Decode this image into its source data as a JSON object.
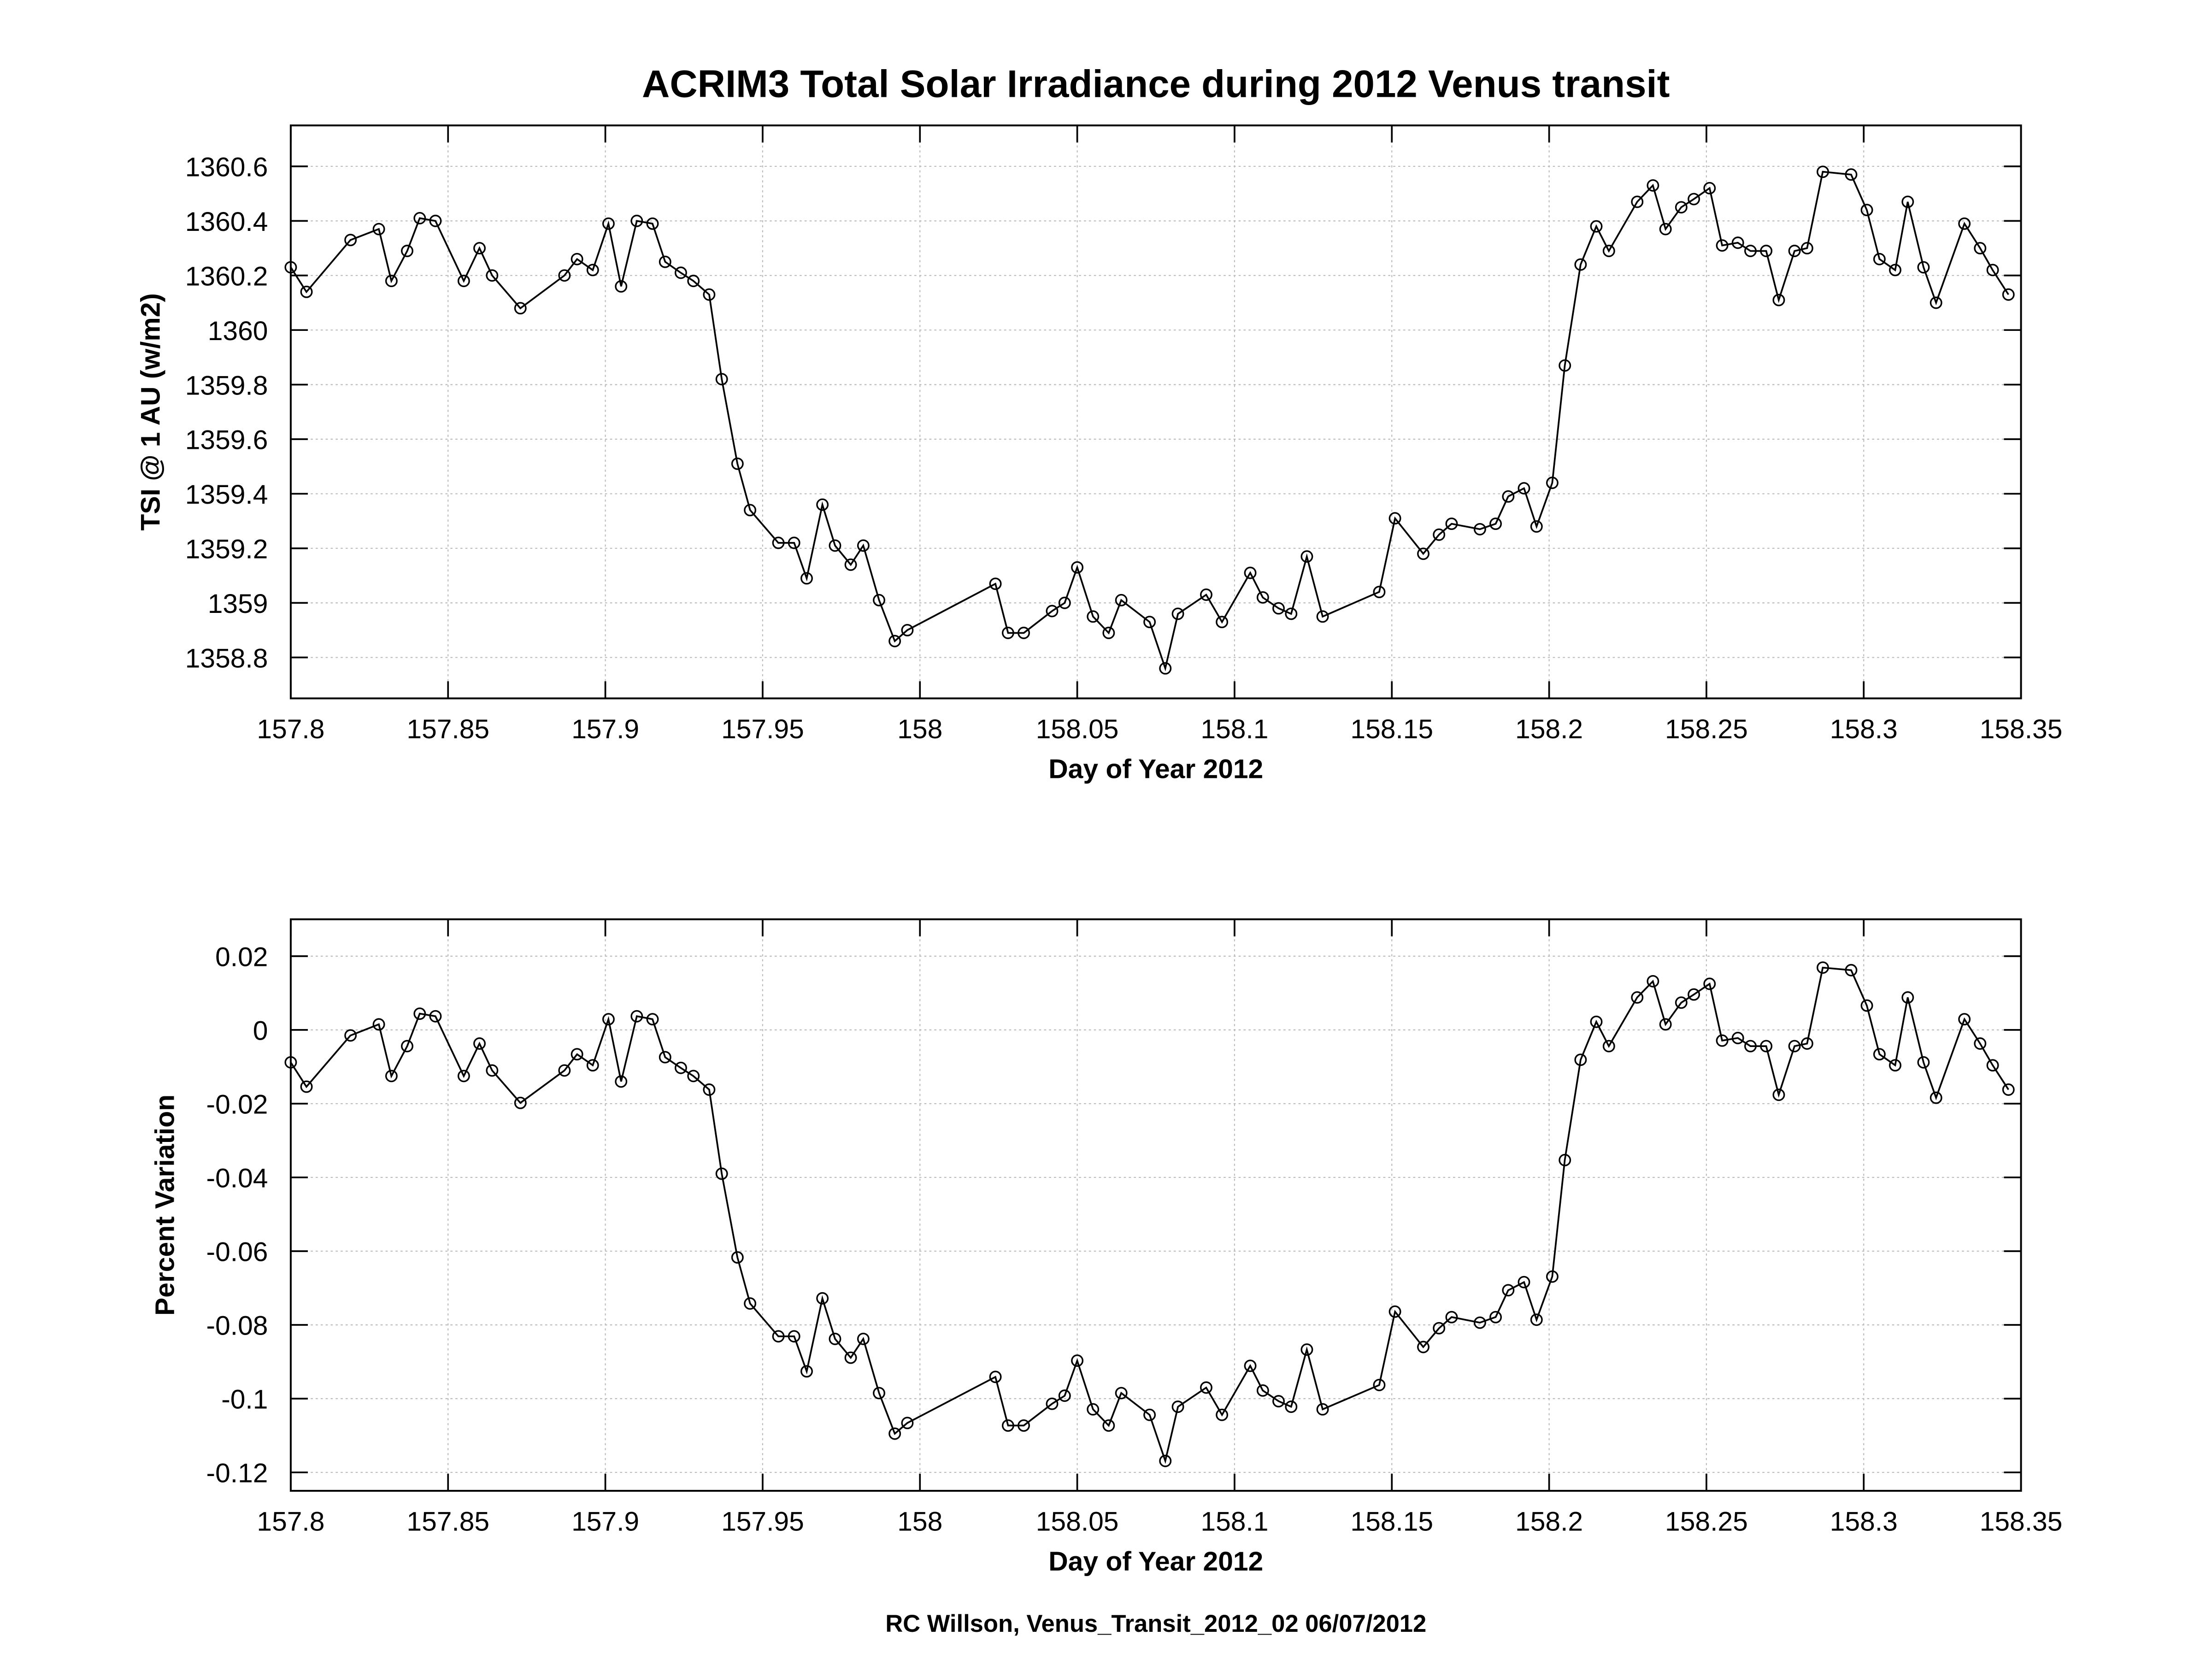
{
  "title": "ACRIM3 Total Solar Irradiance during 2012 Venus transit",
  "footer": "RC Willson, Venus_Transit_2012_02 06/07/2012",
  "chart_data": [
    {
      "type": "line",
      "marker": "circle",
      "xlabel": "Day of Year 2012",
      "ylabel": "TSI @ 1 AU (w/m2)",
      "xlim": [
        157.8,
        158.35
      ],
      "ylim": [
        1358.65,
        1360.75
      ],
      "grid": true,
      "x_ticks": [
        "157.8",
        "157.85",
        "157.9",
        "157.95",
        "158",
        "158.05",
        "158.1",
        "158.15",
        "158.2",
        "158.25",
        "158.3",
        "158.35"
      ],
      "y_ticks": [
        "1358.8",
        "1359",
        "1359.2",
        "1359.4",
        "1359.6",
        "1359.8",
        "1360",
        "1360.2",
        "1360.4",
        "1360.6"
      ],
      "x": [
        157.8,
        157.805,
        157.819,
        157.828,
        157.832,
        157.837,
        157.841,
        157.846,
        157.855,
        157.86,
        157.864,
        157.873,
        157.887,
        157.891,
        157.896,
        157.901,
        157.905,
        157.91,
        157.915,
        157.919,
        157.924,
        157.928,
        157.933,
        157.937,
        157.942,
        157.946,
        157.955,
        157.96,
        157.964,
        157.969,
        157.973,
        157.978,
        157.982,
        157.987,
        157.992,
        157.996,
        158.024,
        158.028,
        158.033,
        158.042,
        158.046,
        158.05,
        158.055,
        158.06,
        158.064,
        158.073,
        158.078,
        158.082,
        158.091,
        158.096,
        158.105,
        158.109,
        158.114,
        158.118,
        158.123,
        158.128,
        158.146,
        158.151,
        158.16,
        158.165,
        158.169,
        158.178,
        158.183,
        158.187,
        158.192,
        158.196,
        158.201,
        158.205,
        158.21,
        158.215,
        158.219,
        158.228,
        158.233,
        158.237,
        158.242,
        158.246,
        158.251,
        158.255,
        158.26,
        158.264,
        158.269,
        158.273,
        158.278,
        158.282,
        158.287,
        158.296,
        158.301,
        158.305,
        158.31,
        158.314,
        158.319,
        158.323,
        158.332,
        158.337,
        158.341,
        158.346
      ],
      "y": [
        1360.23,
        1360.14,
        1360.33,
        1360.37,
        1360.18,
        1360.29,
        1360.41,
        1360.4,
        1360.18,
        1360.3,
        1360.2,
        1360.08,
        1360.2,
        1360.26,
        1360.22,
        1360.39,
        1360.16,
        1360.4,
        1360.39,
        1360.25,
        1360.21,
        1360.18,
        1360.13,
        1359.82,
        1359.51,
        1359.34,
        1359.22,
        1359.22,
        1359.09,
        1359.36,
        1359.21,
        1359.14,
        1359.21,
        1359.01,
        1358.86,
        1358.9,
        1359.07,
        1358.89,
        1358.89,
        1358.97,
        1359.0,
        1359.13,
        1358.95,
        1358.89,
        1359.01,
        1358.93,
        1358.76,
        1358.96,
        1359.03,
        1358.93,
        1359.11,
        1359.02,
        1358.98,
        1358.96,
        1359.17,
        1358.95,
        1359.04,
        1359.31,
        1359.18,
        1359.25,
        1359.29,
        1359.27,
        1359.29,
        1359.39,
        1359.42,
        1359.28,
        1359.44,
        1359.87,
        1360.24,
        1360.38,
        1360.29,
        1360.47,
        1360.53,
        1360.37,
        1360.45,
        1360.48,
        1360.52,
        1360.31,
        1360.32,
        1360.29,
        1360.29,
        1360.11,
        1360.29,
        1360.3,
        1360.58,
        1360.57,
        1360.44,
        1360.26,
        1360.22,
        1360.47,
        1360.23,
        1360.1,
        1360.39,
        1360.3,
        1360.22,
        1360.13
      ]
    },
    {
      "type": "line",
      "marker": "circle",
      "xlabel": "Day of Year 2012",
      "ylabel": "Percent Variation",
      "xlim": [
        157.8,
        158.35
      ],
      "ylim": [
        -0.125,
        0.03
      ],
      "grid": true,
      "x_ticks": [
        "157.8",
        "157.85",
        "157.9",
        "157.95",
        "158",
        "158.05",
        "158.1",
        "158.15",
        "158.2",
        "158.25",
        "158.3",
        "158.35"
      ],
      "y_ticks": [
        "-0.12",
        "-0.1",
        "-0.08",
        "-0.06",
        "-0.04",
        "-0.02",
        "0",
        "0.02"
      ],
      "x": "same as TSI panel",
      "y": [
        -0.0088,
        -0.0154,
        -0.0015,
        0.0015,
        -0.0125,
        -0.0044,
        0.0044,
        0.0037,
        -0.0125,
        -0.0037,
        -0.011,
        -0.0198,
        -0.011,
        -0.0066,
        -0.0096,
        0.0029,
        -0.014,
        0.0037,
        0.0029,
        -0.0074,
        -0.0103,
        -0.0125,
        -0.0162,
        -0.039,
        -0.0617,
        -0.0742,
        -0.0831,
        -0.0831,
        -0.0926,
        -0.0728,
        -0.0838,
        -0.0889,
        -0.0838,
        -0.0985,
        -0.1095,
        -0.1066,
        -0.0941,
        -0.1073,
        -0.1073,
        -0.1014,
        -0.0992,
        -0.0897,
        -0.1029,
        -0.1073,
        -0.0985,
        -0.1044,
        -0.1169,
        -0.1022,
        -0.097,
        -0.1044,
        -0.0911,
        -0.0978,
        -0.1007,
        -0.1022,
        -0.0867,
        -0.1029,
        -0.0963,
        -0.0764,
        -0.086,
        -0.0809,
        -0.0779,
        -0.0794,
        -0.0779,
        -0.0706,
        -0.0684,
        -0.0786,
        -0.0669,
        -0.0353,
        -0.0081,
        0.0022,
        -0.0044,
        0.0088,
        0.0132,
        0.0015,
        0.0074,
        0.0096,
        0.0125,
        -0.0029,
        -0.0022,
        -0.0044,
        -0.0044,
        -0.0176,
        -0.0044,
        -0.0037,
        0.0169,
        0.0162,
        0.0066,
        -0.0066,
        -0.0096,
        0.0088,
        -0.0088,
        -0.0184,
        0.0029,
        -0.0037,
        -0.0096,
        -0.0162
      ]
    }
  ]
}
